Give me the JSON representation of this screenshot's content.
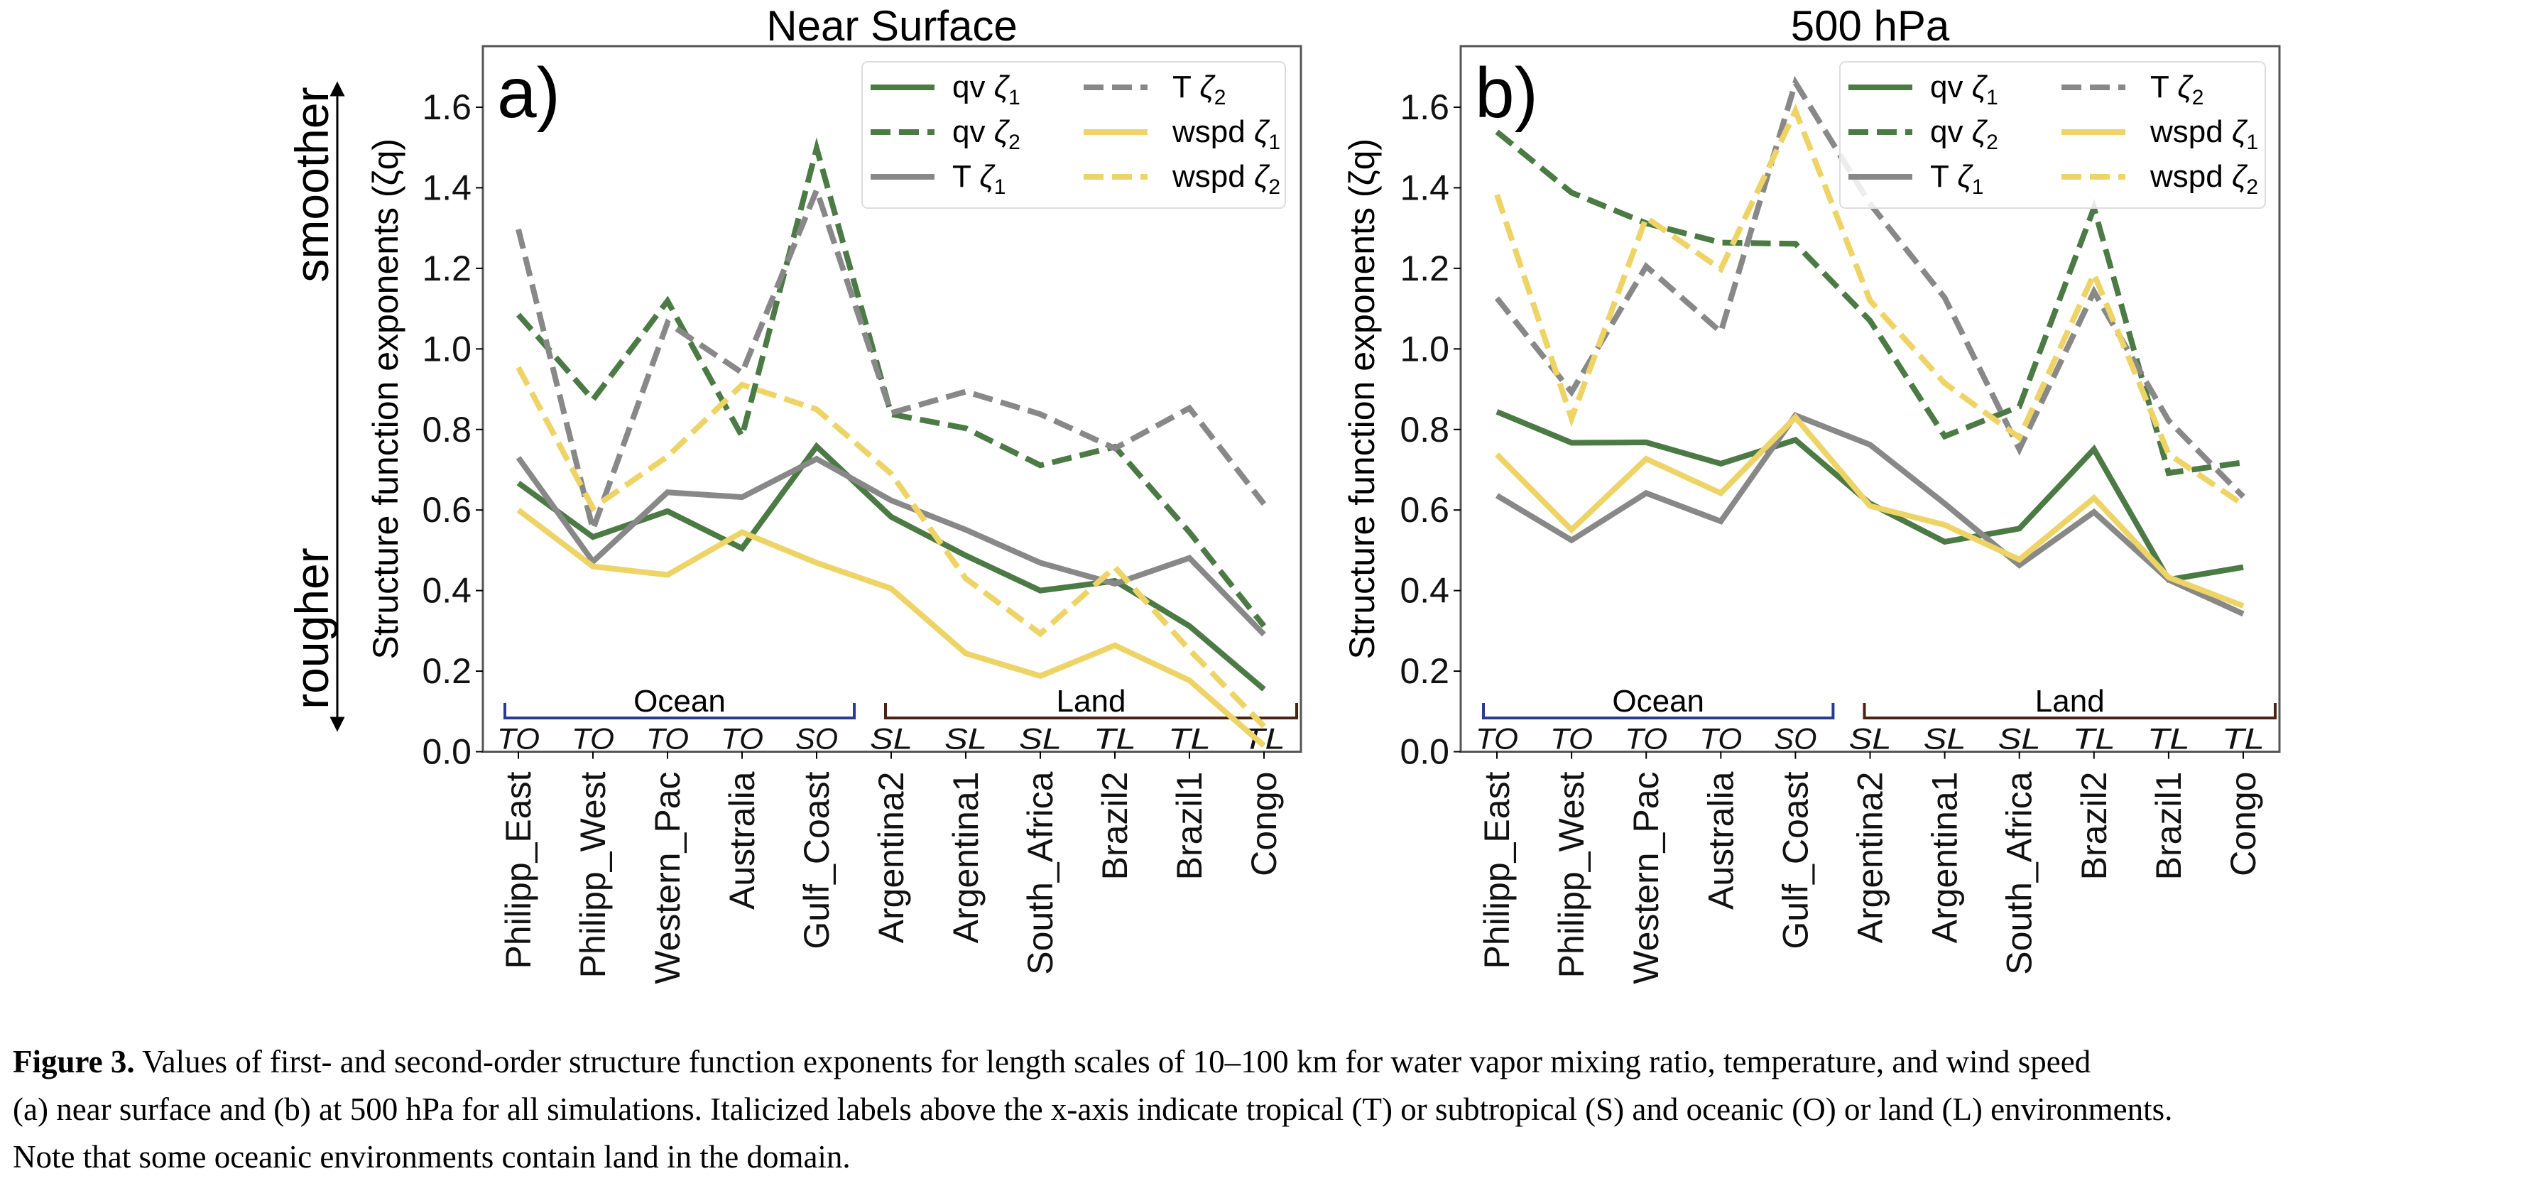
{
  "figure": {
    "caption_label": "Figure 3.",
    "caption_line1": " Values of first- and second-order structure function exponents for length scales of 10–100 km for water vapor mixing ratio, temperature, and wind speed",
    "caption_line2": "(a) near surface and (b) at 500 hPa for all simulations. Italicized labels above the x-axis indicate tropical (T) or subtropical (S) and oceanic (O) or land (L) environments.",
    "caption_line3": "Note that some oceanic environments contain land in the domain.",
    "side_arrow": {
      "top_label": "smoother",
      "bottom_label": "rougher"
    }
  },
  "chart_data": [
    {
      "type": "line",
      "panel_label": "a)",
      "title": "Near Surface",
      "xlabel": "",
      "ylabel": "Structure function exponents (ζq)",
      "ylim": [
        0.0,
        1.75
      ],
      "yticks": [
        "0.0",
        "0.2",
        "0.4",
        "0.6",
        "0.8",
        "1.0",
        "1.2",
        "1.4",
        "1.6"
      ],
      "grid": false,
      "legend_position": "top-right",
      "categories": [
        "Philipp_East",
        "Philipp_West",
        "Western_Pac",
        "Australia",
        "Gulf_Coast",
        "Argentina2",
        "Argentina1",
        "South_Africa",
        "Brazil2",
        "Brazil1",
        "Congo"
      ],
      "environment_labels": [
        "TO",
        "TO",
        "TO",
        "TO",
        "SO",
        "SL",
        "SL",
        "SL",
        "TL",
        "TL",
        "TL"
      ],
      "groups": [
        {
          "label": "Ocean",
          "from": 0,
          "to": 4,
          "color": "#2b3a92"
        },
        {
          "label": "Land",
          "from": 5,
          "to": 10,
          "color": "#4a2314"
        }
      ],
      "series": [
        {
          "name": "qv ζ1",
          "var": "qv",
          "sub": "1",
          "color": "#4b7a45",
          "dash": "solid",
          "values": [
            0.667,
            0.533,
            0.597,
            0.505,
            0.758,
            0.583,
            0.487,
            0.4,
            0.424,
            0.312,
            0.155
          ]
        },
        {
          "name": "qv ζ2",
          "var": "qv",
          "sub": "2",
          "color": "#4b7a45",
          "dash": "dashed",
          "values": [
            1.085,
            0.874,
            1.119,
            0.783,
            1.498,
            0.838,
            0.803,
            0.711,
            0.757,
            0.545,
            0.312
          ]
        },
        {
          "name": "T ζ1",
          "var": "T",
          "sub": "1",
          "color": "#888888",
          "dash": "solid",
          "values": [
            0.73,
            0.472,
            0.644,
            0.632,
            0.727,
            0.624,
            0.551,
            0.469,
            0.417,
            0.481,
            0.291
          ]
        },
        {
          "name": "T ζ2",
          "var": "T",
          "sub": "2",
          "color": "#888888",
          "dash": "dashed",
          "values": [
            1.297,
            0.552,
            1.065,
            0.941,
            1.394,
            0.841,
            0.894,
            0.838,
            0.753,
            0.853,
            0.615
          ]
        },
        {
          "name": "wspd ζ1",
          "var": "wspd",
          "sub": "1",
          "color": "#eed467",
          "dash": "solid",
          "values": [
            0.6,
            0.46,
            0.439,
            0.545,
            0.469,
            0.405,
            0.244,
            0.188,
            0.264,
            0.177,
            0.015
          ]
        },
        {
          "name": "wspd ζ2",
          "var": "wspd",
          "sub": "2",
          "color": "#eed467",
          "dash": "dashed",
          "values": [
            0.954,
            0.605,
            0.733,
            0.911,
            0.85,
            0.69,
            0.43,
            0.293,
            0.458,
            0.253,
            0.063
          ]
        }
      ]
    },
    {
      "type": "line",
      "panel_label": "b)",
      "title": "500 hPa",
      "xlabel": "",
      "ylabel": "Structure function exponents (ζq)",
      "ylim": [
        0.0,
        1.75
      ],
      "yticks": [
        "0.0",
        "0.2",
        "0.4",
        "0.6",
        "0.8",
        "1.0",
        "1.2",
        "1.4",
        "1.6"
      ],
      "grid": false,
      "legend_position": "top-right",
      "categories": [
        "Philipp_East",
        "Philipp_West",
        "Western_Pac",
        "Australia",
        "Gulf_Coast",
        "Argentina2",
        "Argentina1",
        "South_Africa",
        "Brazil2",
        "Brazil1",
        "Congo"
      ],
      "environment_labels": [
        "TO",
        "TO",
        "TO",
        "TO",
        "SO",
        "SL",
        "SL",
        "SL",
        "TL",
        "TL",
        "TL"
      ],
      "groups": [
        {
          "label": "Ocean",
          "from": 0,
          "to": 4,
          "color": "#2b3a92"
        },
        {
          "label": "Land",
          "from": 5,
          "to": 10,
          "color": "#4a2314"
        }
      ],
      "series": [
        {
          "name": "qv ζ1",
          "var": "qv",
          "sub": "1",
          "color": "#4b7a45",
          "dash": "solid",
          "values": [
            0.844,
            0.767,
            0.768,
            0.715,
            0.774,
            0.616,
            0.521,
            0.554,
            0.751,
            0.427,
            0.458
          ]
        },
        {
          "name": "qv ζ2",
          "var": "qv",
          "sub": "2",
          "color": "#4b7a45",
          "dash": "dashed",
          "values": [
            1.539,
            1.388,
            1.312,
            1.264,
            1.261,
            1.07,
            0.783,
            0.857,
            1.35,
            0.692,
            0.718
          ]
        },
        {
          "name": "T ζ1",
          "var": "T",
          "sub": "1",
          "color": "#888888",
          "dash": "solid",
          "values": [
            0.636,
            0.525,
            0.642,
            0.572,
            0.835,
            0.762,
            0.616,
            0.463,
            0.595,
            0.427,
            0.342
          ]
        },
        {
          "name": "T ζ2",
          "var": "T",
          "sub": "2",
          "color": "#888888",
          "dash": "dashed",
          "values": [
            1.126,
            0.893,
            1.205,
            1.042,
            1.661,
            1.36,
            1.127,
            0.751,
            1.142,
            0.822,
            0.633
          ]
        },
        {
          "name": "wspd ζ1",
          "var": "wspd",
          "sub": "1",
          "color": "#eed467",
          "dash": "solid",
          "values": [
            0.738,
            0.551,
            0.727,
            0.642,
            0.83,
            0.61,
            0.563,
            0.477,
            0.63,
            0.433,
            0.362
          ]
        },
        {
          "name": "wspd ζ2",
          "var": "wspd",
          "sub": "2",
          "color": "#eed467",
          "dash": "dashed",
          "values": [
            1.383,
            0.827,
            1.326,
            1.198,
            1.591,
            1.12,
            0.915,
            0.78,
            1.186,
            0.739,
            0.613
          ]
        }
      ]
    }
  ]
}
